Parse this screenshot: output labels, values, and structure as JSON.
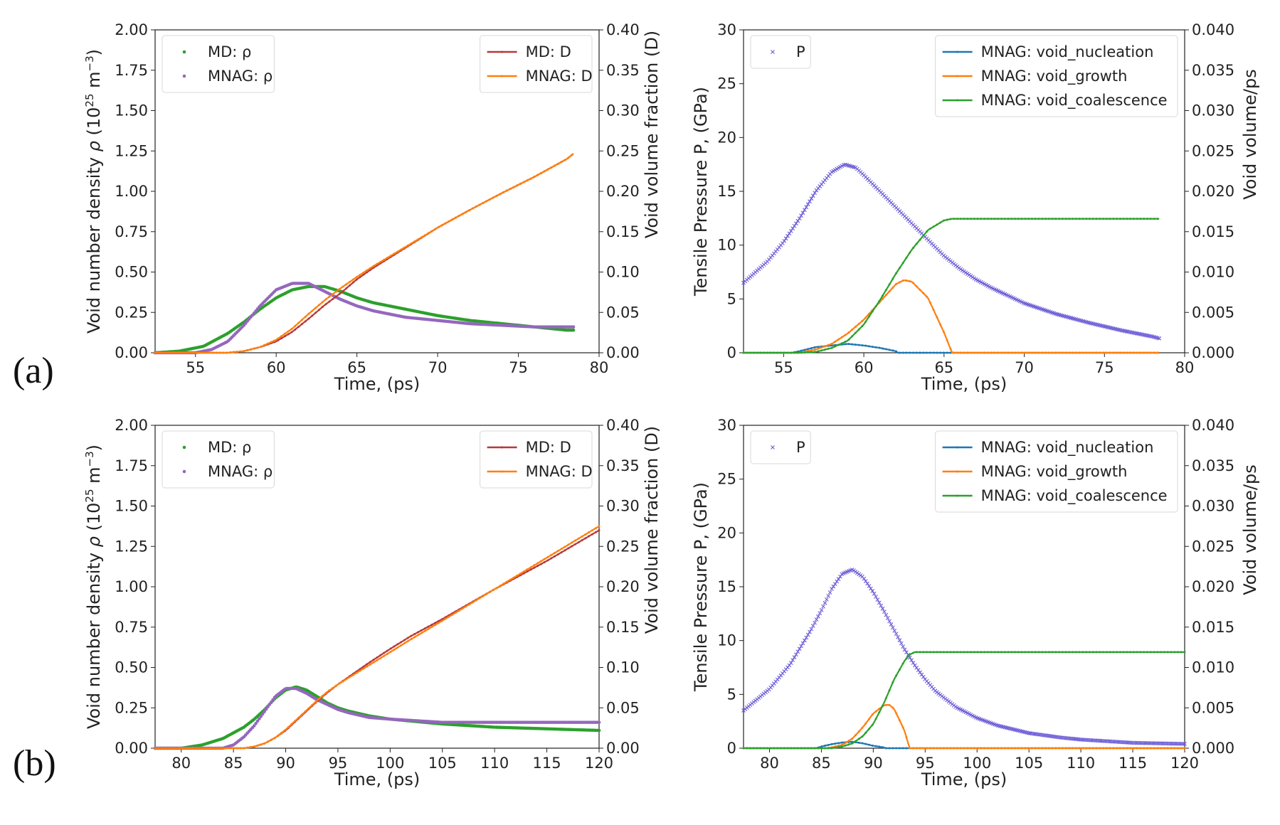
{
  "panel_labels": [
    "(a)",
    "(b)"
  ],
  "chart_data": [
    {
      "type": "line",
      "panel": "(a)",
      "position": "left",
      "xlabel": "Time, (ps)",
      "ylabel": "Void number density ρ (10²⁵ m⁻³)",
      "ylabel_parts": [
        "Void number density ",
        "ρ",
        " (10",
        "25",
        " m",
        "−3",
        ")"
      ],
      "y2label": "Void volume fraction (D)",
      "xlim": [
        52.5,
        80
      ],
      "ylim": [
        0,
        2
      ],
      "y2lim": [
        0,
        0.4
      ],
      "xticks": [
        "55",
        "60",
        "65",
        "70",
        "75",
        "80"
      ],
      "yticks": [
        "0.00",
        "0.25",
        "0.50",
        "0.75",
        "1.00",
        "1.25",
        "1.50",
        "1.75",
        "2.00"
      ],
      "y2ticks": [
        "0.00",
        "0.05",
        "0.10",
        "0.15",
        "0.20",
        "0.25",
        "0.30",
        "0.35",
        "0.40"
      ],
      "legends": [
        {
          "loc": "upper left",
          "entries": [
            "MD: ρ",
            "MNAG: ρ"
          ]
        },
        {
          "loc": "upper right",
          "entries": [
            "MD: D",
            "MNAG: D"
          ]
        }
      ],
      "series": [
        {
          "name": "MD: ρ",
          "axis": "left",
          "color": "#2ca02c",
          "marker": "*",
          "x": [
            52.5,
            54,
            55.5,
            57,
            58,
            59,
            60,
            61,
            62,
            63,
            64,
            65,
            66,
            67,
            68,
            69,
            70,
            72,
            74,
            76,
            78,
            78.5
          ],
          "values": [
            0,
            0.01,
            0.04,
            0.12,
            0.19,
            0.27,
            0.34,
            0.39,
            0.41,
            0.41,
            0.38,
            0.34,
            0.31,
            0.29,
            0.27,
            0.25,
            0.23,
            0.2,
            0.18,
            0.16,
            0.14,
            0.14
          ]
        },
        {
          "name": "MNAG: ρ",
          "axis": "left",
          "color": "#9467bd",
          "marker": "*",
          "x": [
            52.5,
            55,
            56,
            57,
            58,
            59,
            60,
            61,
            62,
            63,
            64,
            65,
            66,
            68,
            70,
            72,
            74,
            76,
            78,
            78.5
          ],
          "values": [
            0,
            0,
            0.02,
            0.07,
            0.17,
            0.29,
            0.39,
            0.43,
            0.43,
            0.38,
            0.33,
            0.29,
            0.26,
            0.22,
            0.2,
            0.18,
            0.17,
            0.16,
            0.16,
            0.16
          ]
        },
        {
          "name": "MD: D",
          "axis": "right",
          "color": "#b5393a",
          "marker": ".",
          "x": [
            52.5,
            57,
            58,
            59,
            60,
            61,
            62,
            63,
            64,
            65,
            66,
            68,
            70,
            72,
            74,
            76,
            78,
            78.5
          ],
          "values": [
            0,
            0,
            0.002,
            0.007,
            0.014,
            0.026,
            0.042,
            0.059,
            0.074,
            0.091,
            0.105,
            0.13,
            0.155,
            0.177,
            0.198,
            0.218,
            0.24,
            0.248
          ]
        },
        {
          "name": "MNAG: D",
          "axis": "right",
          "color": "#ff7f0e",
          "marker": ".",
          "x": [
            52.5,
            57,
            58,
            59,
            60,
            61,
            62,
            63,
            64,
            65,
            66,
            68,
            70,
            72,
            74,
            76,
            78,
            78.5
          ],
          "values": [
            0,
            0,
            0.002,
            0.007,
            0.016,
            0.03,
            0.048,
            0.065,
            0.08,
            0.094,
            0.107,
            0.131,
            0.155,
            0.177,
            0.198,
            0.218,
            0.24,
            0.248
          ]
        }
      ]
    },
    {
      "type": "line",
      "panel": "(a)",
      "position": "right",
      "xlabel": "Time, (ps)",
      "ylabel": "Tensile Pressure P, (GPa)",
      "y2label": "Void volume/ps",
      "xlim": [
        52.5,
        80
      ],
      "ylim": [
        0,
        30
      ],
      "y2lim": [
        0,
        0.04
      ],
      "xticks": [
        "55",
        "60",
        "65",
        "70",
        "75",
        "80"
      ],
      "yticks": [
        "0",
        "5",
        "10",
        "15",
        "20",
        "25",
        "30"
      ],
      "y2ticks": [
        "0.000",
        "0.005",
        "0.010",
        "0.015",
        "0.020",
        "0.025",
        "0.030",
        "0.035",
        "0.040"
      ],
      "legends": [
        {
          "loc": "upper left",
          "entries": [
            "P"
          ]
        },
        {
          "loc": "upper right",
          "entries": [
            "MNAG: void_nucleation",
            "MNAG: void_growth",
            "MNAG: void_coalescence"
          ]
        }
      ],
      "series": [
        {
          "name": "P",
          "axis": "left",
          "color": "#6b5bd6",
          "marker": "x",
          "x": [
            52.5,
            54,
            55,
            56,
            57,
            58,
            58.8,
            59.5,
            60,
            61,
            62,
            63,
            64,
            65,
            66,
            67,
            68,
            70,
            72,
            74,
            76,
            78,
            78.5
          ],
          "values": [
            6.5,
            8.5,
            10.3,
            12.5,
            15,
            16.8,
            17.5,
            17.2,
            16.5,
            15,
            13.5,
            12,
            10.5,
            9,
            7.8,
            6.8,
            6,
            4.6,
            3.6,
            2.8,
            2.1,
            1.5,
            1.3
          ]
        },
        {
          "name": "MNAG: void_nucleation",
          "axis": "right",
          "color": "#1f77b4",
          "marker": ".",
          "x": [
            52.5,
            55.5,
            56,
            57,
            58,
            59,
            60,
            61,
            62,
            62.1,
            78.5
          ],
          "values": [
            0,
            0,
            0.0002,
            0.0007,
            0.0009,
            0.0011,
            0.0009,
            0.0006,
            0.0002,
            0,
            0
          ]
        },
        {
          "name": "MNAG: void_growth",
          "axis": "right",
          "color": "#ff7f0e",
          "marker": ".",
          "x": [
            52.5,
            56,
            57,
            58,
            59,
            60,
            61,
            62,
            62.5,
            63,
            64,
            65,
            65.5,
            78.5
          ],
          "values": [
            0,
            0,
            0.0004,
            0.0011,
            0.0024,
            0.0041,
            0.0063,
            0.0085,
            0.009,
            0.0088,
            0.0068,
            0.0025,
            0,
            0
          ]
        },
        {
          "name": "MNAG: void_coalescence",
          "axis": "right",
          "color": "#2ca02c",
          "marker": ".",
          "x": [
            52.5,
            56,
            57,
            58,
            59,
            60,
            61,
            62,
            63,
            64,
            65,
            65.5,
            78.5
          ],
          "values": [
            0,
            0,
            0.0001,
            0.0006,
            0.0015,
            0.0035,
            0.0065,
            0.0098,
            0.0128,
            0.0152,
            0.0164,
            0.0166,
            0.0166
          ]
        }
      ]
    },
    {
      "type": "line",
      "panel": "(b)",
      "position": "left",
      "xlabel": "Time, (ps)",
      "ylabel": "Void number density ρ (10²⁵ m⁻³)",
      "ylabel_parts": [
        "Void number density ",
        "ρ",
        " (10",
        "25",
        " m",
        "−3",
        ")"
      ],
      "y2label": "Void volume fraction (D)",
      "xlim": [
        77.5,
        120
      ],
      "ylim": [
        0,
        2
      ],
      "y2lim": [
        0,
        0.4
      ],
      "xticks": [
        "80",
        "85",
        "90",
        "95",
        "100",
        "105",
        "110",
        "115",
        "120"
      ],
      "yticks": [
        "0.00",
        "0.25",
        "0.50",
        "0.75",
        "1.00",
        "1.25",
        "1.50",
        "1.75",
        "2.00"
      ],
      "y2ticks": [
        "0.00",
        "0.05",
        "0.10",
        "0.15",
        "0.20",
        "0.25",
        "0.30",
        "0.35",
        "0.40"
      ],
      "legends": [
        {
          "loc": "upper left",
          "entries": [
            "MD: ρ",
            "MNAG: ρ"
          ]
        },
        {
          "loc": "upper right",
          "entries": [
            "MD: D",
            "MNAG: D"
          ]
        }
      ],
      "series": [
        {
          "name": "MD: ρ",
          "axis": "left",
          "color": "#2ca02c",
          "marker": "*",
          "x": [
            77.5,
            80,
            82,
            84,
            86,
            87,
            88,
            89,
            90,
            91,
            92,
            93,
            94,
            95,
            96,
            98,
            100,
            105,
            110,
            115,
            120
          ],
          "values": [
            0,
            0,
            0.02,
            0.06,
            0.13,
            0.18,
            0.24,
            0.31,
            0.36,
            0.38,
            0.36,
            0.32,
            0.28,
            0.25,
            0.23,
            0.2,
            0.18,
            0.15,
            0.13,
            0.12,
            0.11
          ]
        },
        {
          "name": "MNAG: ρ",
          "axis": "left",
          "color": "#9467bd",
          "marker": "*",
          "x": [
            77.5,
            84,
            85,
            86,
            87,
            88,
            89,
            90,
            91,
            92,
            93,
            94,
            95,
            96,
            98,
            100,
            105,
            110,
            115,
            120
          ],
          "values": [
            0,
            0,
            0.02,
            0.07,
            0.14,
            0.23,
            0.32,
            0.37,
            0.37,
            0.34,
            0.3,
            0.27,
            0.24,
            0.22,
            0.19,
            0.18,
            0.16,
            0.16,
            0.16,
            0.16
          ]
        },
        {
          "name": "MD: D",
          "axis": "right",
          "color": "#b5393a",
          "marker": ".",
          "x": [
            77.5,
            86,
            87,
            88,
            89,
            90,
            91,
            92,
            93,
            94,
            95,
            96,
            98,
            100,
            102,
            105,
            110,
            115,
            120
          ],
          "values": [
            0,
            0,
            0.002,
            0.006,
            0.013,
            0.022,
            0.034,
            0.046,
            0.058,
            0.069,
            0.079,
            0.088,
            0.106,
            0.123,
            0.139,
            0.16,
            0.197,
            0.232,
            0.27
          ]
        },
        {
          "name": "MNAG: D",
          "axis": "right",
          "color": "#ff7f0e",
          "marker": ".",
          "x": [
            77.5,
            86,
            87,
            88,
            89,
            90,
            91,
            92,
            93,
            94,
            95,
            96,
            98,
            100,
            102,
            105,
            110,
            115,
            120
          ],
          "values": [
            0,
            0,
            0.002,
            0.006,
            0.013,
            0.023,
            0.035,
            0.047,
            0.059,
            0.07,
            0.079,
            0.087,
            0.103,
            0.119,
            0.135,
            0.158,
            0.197,
            0.236,
            0.275
          ]
        }
      ]
    },
    {
      "type": "line",
      "panel": "(b)",
      "position": "right",
      "xlabel": "Time, (ps)",
      "ylabel": "Tensile Pressure P, (GPa)",
      "y2label": "Void volume/ps",
      "xlim": [
        77.5,
        120
      ],
      "ylim": [
        0,
        30
      ],
      "y2lim": [
        0,
        0.04
      ],
      "xticks": [
        "80",
        "85",
        "90",
        "95",
        "100",
        "105",
        "110",
        "115",
        "120"
      ],
      "yticks": [
        "0",
        "5",
        "10",
        "15",
        "20",
        "25",
        "30"
      ],
      "y2ticks": [
        "0.000",
        "0.005",
        "0.010",
        "0.015",
        "0.020",
        "0.025",
        "0.030",
        "0.035",
        "0.040"
      ],
      "legends": [
        {
          "loc": "upper left",
          "entries": [
            "P"
          ]
        },
        {
          "loc": "upper right",
          "entries": [
            "MNAG: void_nucleation",
            "MNAG: void_growth",
            "MNAG: void_coalescence"
          ]
        }
      ],
      "series": [
        {
          "name": "P",
          "axis": "left",
          "color": "#6b5bd6",
          "marker": "x",
          "x": [
            77.5,
            80,
            82,
            84,
            85,
            86,
            87,
            88,
            89,
            90,
            91,
            92,
            93,
            94,
            95,
            96,
            98,
            100,
            102,
            105,
            108,
            110,
            115,
            120
          ],
          "values": [
            3.5,
            5.5,
            7.8,
            11,
            12.8,
            14.8,
            16.2,
            16.6,
            15.9,
            14.5,
            12.8,
            11,
            9.2,
            7.7,
            6.4,
            5.3,
            3.8,
            2.8,
            2.1,
            1.4,
            1,
            0.8,
            0.5,
            0.4
          ]
        },
        {
          "name": "MNAG: void_nucleation",
          "axis": "right",
          "color": "#1f77b4",
          "marker": ".",
          "x": [
            77.5,
            84.5,
            85,
            86,
            87,
            88,
            89,
            90,
            91,
            91.2,
            120
          ],
          "values": [
            0,
            0,
            0.0002,
            0.0005,
            0.0007,
            0.0008,
            0.0006,
            0.0003,
            0.0001,
            0,
            0
          ]
        },
        {
          "name": "MNAG: void_growth",
          "axis": "right",
          "color": "#ff7f0e",
          "marker": ".",
          "x": [
            77.5,
            85.5,
            86,
            87,
            88,
            89,
            90,
            91,
            91.5,
            92,
            93,
            93.5,
            120
          ],
          "values": [
            0,
            0,
            0.0001,
            0.0004,
            0.0012,
            0.0026,
            0.0043,
            0.0053,
            0.0054,
            0.0049,
            0.0022,
            0,
            0
          ]
        },
        {
          "name": "MNAG: void_coalescence",
          "axis": "right",
          "color": "#2ca02c",
          "marker": ".",
          "x": [
            77.5,
            86,
            87,
            88,
            89,
            90,
            91,
            92,
            93,
            93.5,
            94,
            120
          ],
          "values": [
            0,
            0,
            0.0002,
            0.0006,
            0.0015,
            0.003,
            0.0055,
            0.0085,
            0.0108,
            0.0116,
            0.0119,
            0.0119
          ]
        }
      ]
    }
  ]
}
